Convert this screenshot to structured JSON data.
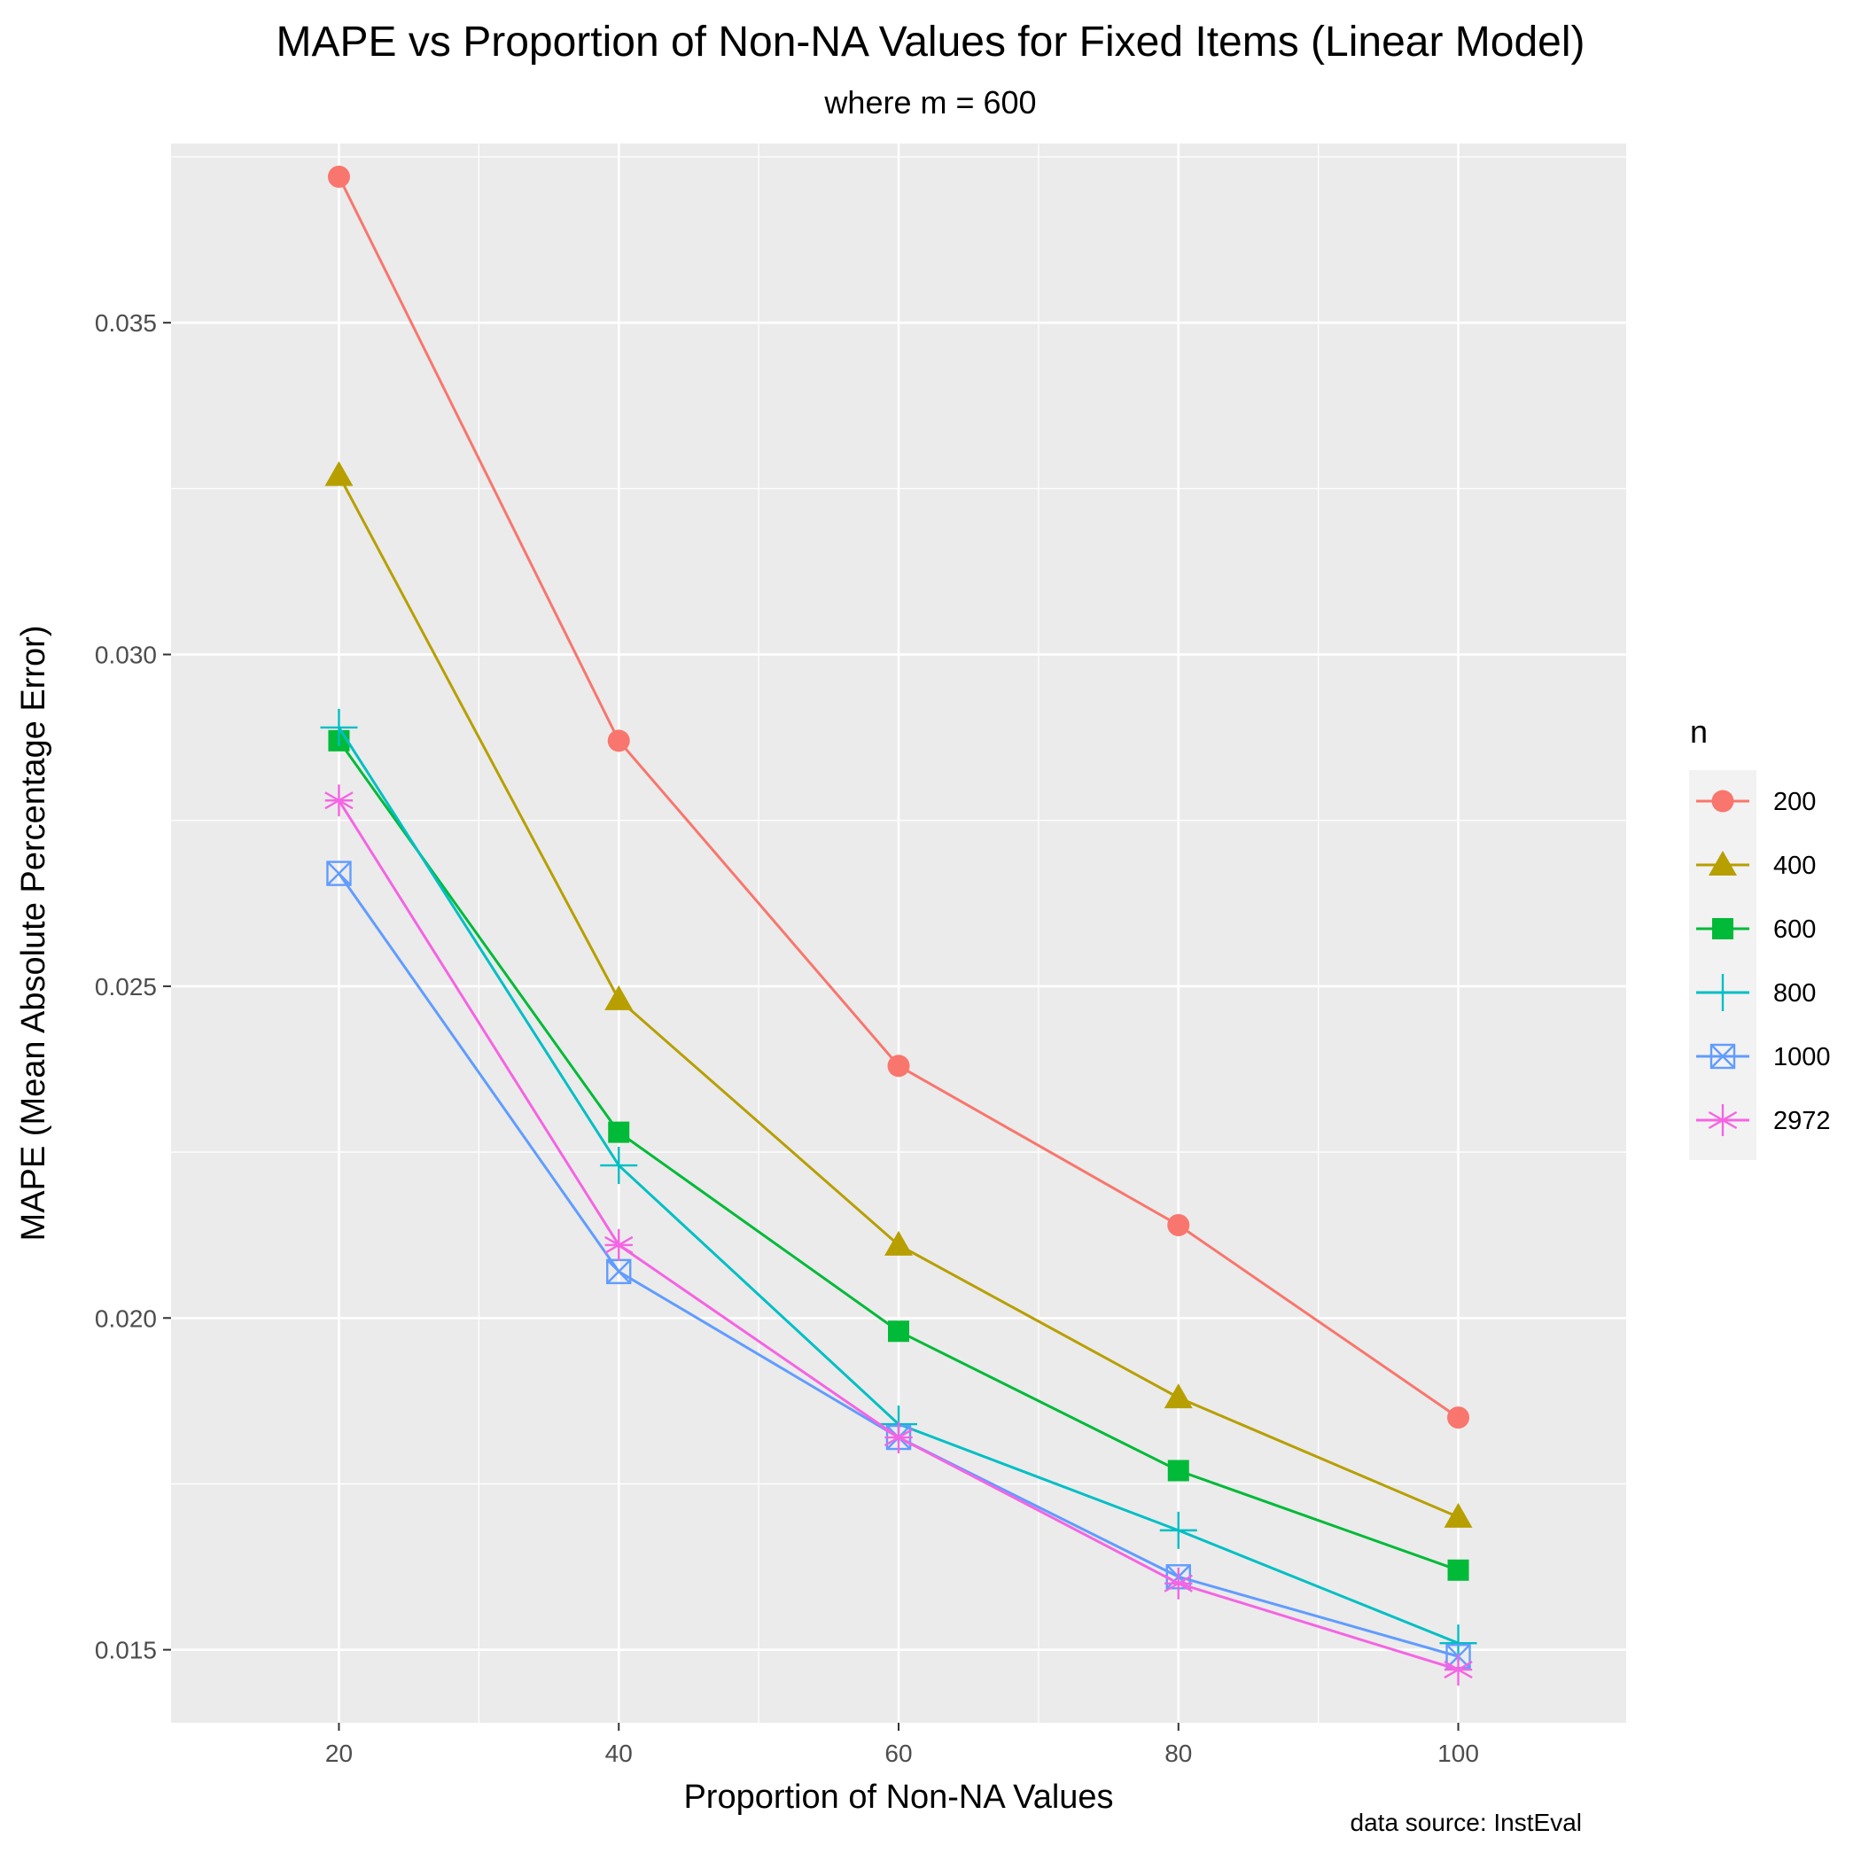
{
  "chart_data": {
    "type": "line",
    "title": "MAPE vs Proportion of Non-NA Values for Fixed Items (Linear Model)",
    "subtitle": "where m = 600",
    "caption": "data source: InstEval",
    "xlabel": "Proportion of Non-NA Values",
    "ylabel": "MAPE (Mean Absolute Percentage Error)",
    "x": [
      20,
      40,
      60,
      80,
      100
    ],
    "x_ticks": [
      "20",
      "40",
      "60",
      "80",
      "100"
    ],
    "y_ticks": [
      "0.015",
      "0.020",
      "0.025",
      "0.030",
      "0.035"
    ],
    "xlim": [
      8,
      112
    ],
    "ylim": [
      0.0139,
      0.0377
    ],
    "grid": true,
    "legend_title": "n",
    "legend_position": "right",
    "series": [
      {
        "name": "200",
        "color": "#F8766D",
        "marker": "circle",
        "values": [
          0.0372,
          0.0287,
          0.0238,
          0.0214,
          0.0185
        ]
      },
      {
        "name": "400",
        "color": "#B79F00",
        "marker": "triangle",
        "values": [
          0.0327,
          0.0248,
          0.0211,
          0.0188,
          0.017
        ]
      },
      {
        "name": "600",
        "color": "#00BA38",
        "marker": "square",
        "values": [
          0.0287,
          0.0228,
          0.0198,
          0.0177,
          0.0162
        ]
      },
      {
        "name": "800",
        "color": "#00BFC4",
        "marker": "plus",
        "values": [
          0.0289,
          0.0223,
          0.0184,
          0.0168,
          0.0151
        ]
      },
      {
        "name": "1000",
        "color": "#619CFF",
        "marker": "square-x",
        "values": [
          0.0267,
          0.0207,
          0.0182,
          0.0161,
          0.0149
        ]
      },
      {
        "name": "2972",
        "color": "#F564E3",
        "marker": "asterisk",
        "values": [
          0.0278,
          0.0211,
          0.0182,
          0.016,
          0.0147
        ]
      }
    ]
  }
}
